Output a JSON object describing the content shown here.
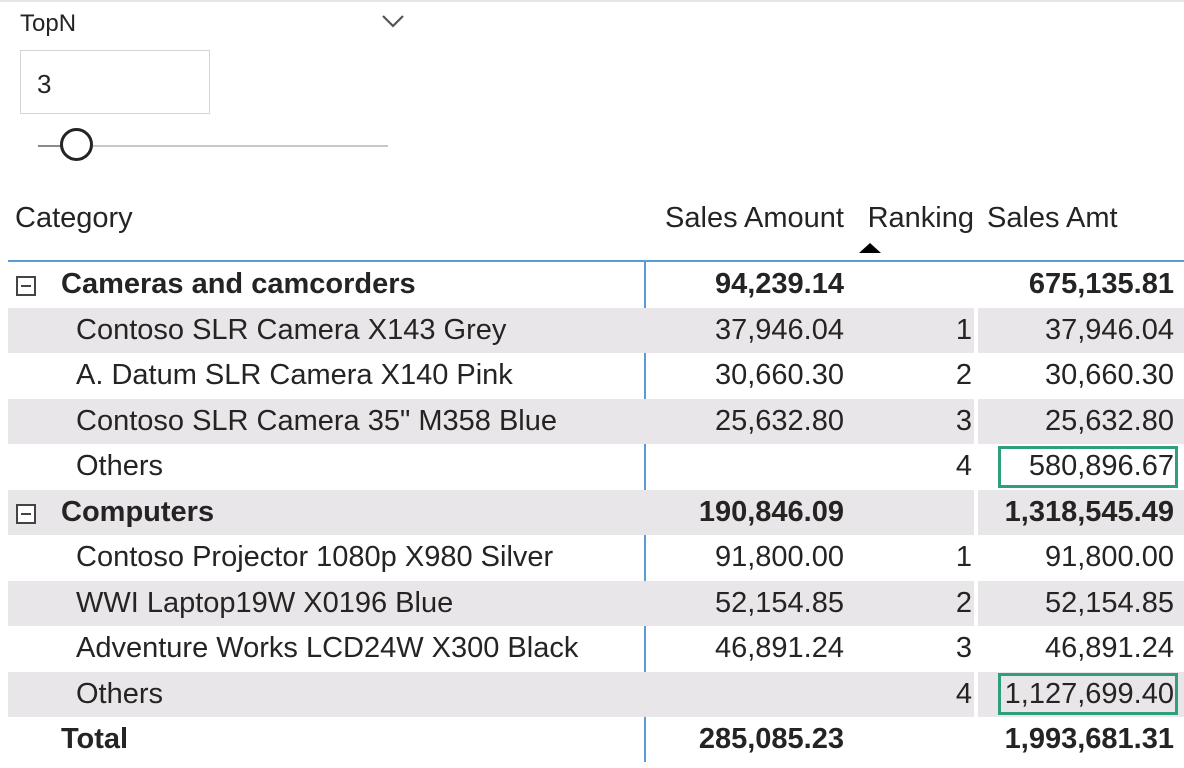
{
  "slicer": {
    "title": "TopN",
    "value": "3"
  },
  "matrix": {
    "columns": {
      "category": "Category",
      "sales_amount": "Sales Amount",
      "ranking": "Ranking",
      "sales_amt": "Sales Amt"
    },
    "sort": {
      "column": "Ranking",
      "direction": "ascending"
    },
    "rows": [
      {
        "type": "group",
        "category": "Cameras and camcorders",
        "sales_amount": "94,239.14",
        "ranking": "",
        "sales_amt": "675,135.81",
        "shaded": false
      },
      {
        "type": "detail",
        "category": "Contoso SLR Camera X143 Grey",
        "sales_amount": "37,946.04",
        "ranking": "1",
        "sales_amt": "37,946.04",
        "shaded": true
      },
      {
        "type": "detail",
        "category": "A. Datum SLR Camera X140 Pink",
        "sales_amount": "30,660.30",
        "ranking": "2",
        "sales_amt": "30,660.30",
        "shaded": false
      },
      {
        "type": "detail",
        "category": "Contoso SLR Camera 35\" M358 Blue",
        "sales_amount": "25,632.80",
        "ranking": "3",
        "sales_amt": "25,632.80",
        "shaded": true
      },
      {
        "type": "detail",
        "category": "Others",
        "sales_amount": "",
        "ranking": "4",
        "sales_amt": "580,896.67",
        "shaded": false,
        "highlighted": true
      },
      {
        "type": "group",
        "category": "Computers",
        "sales_amount": "190,846.09",
        "ranking": "",
        "sales_amt": "1,318,545.49",
        "shaded": true
      },
      {
        "type": "detail",
        "category": "Contoso Projector 1080p X980 Silver",
        "sales_amount": "91,800.00",
        "ranking": "1",
        "sales_amt": "91,800.00",
        "shaded": false
      },
      {
        "type": "detail",
        "category": "WWI Laptop19W X0196 Blue",
        "sales_amount": "52,154.85",
        "ranking": "2",
        "sales_amt": "52,154.85",
        "shaded": true
      },
      {
        "type": "detail",
        "category": "Adventure Works LCD24W X300 Black",
        "sales_amount": "46,891.24",
        "ranking": "3",
        "sales_amt": "46,891.24",
        "shaded": false
      },
      {
        "type": "detail",
        "category": "Others",
        "sales_amount": "",
        "ranking": "4",
        "sales_amt": "1,127,699.40",
        "shaded": true,
        "highlighted": true
      }
    ],
    "total": {
      "category": "Total",
      "sales_amount": "285,085.23",
      "ranking": "",
      "sales_amt": "1,993,681.31"
    }
  },
  "colors": {
    "accent_line": "#5b9bd5",
    "row_shade": "#e8e6e8",
    "highlight_border": "#2e9e7c"
  },
  "icons": {
    "slicer_dropdown": "chevron-down-icon",
    "group_toggle": "collapse-minus-icon",
    "sort_indicator": "sort-ascending-icon"
  }
}
